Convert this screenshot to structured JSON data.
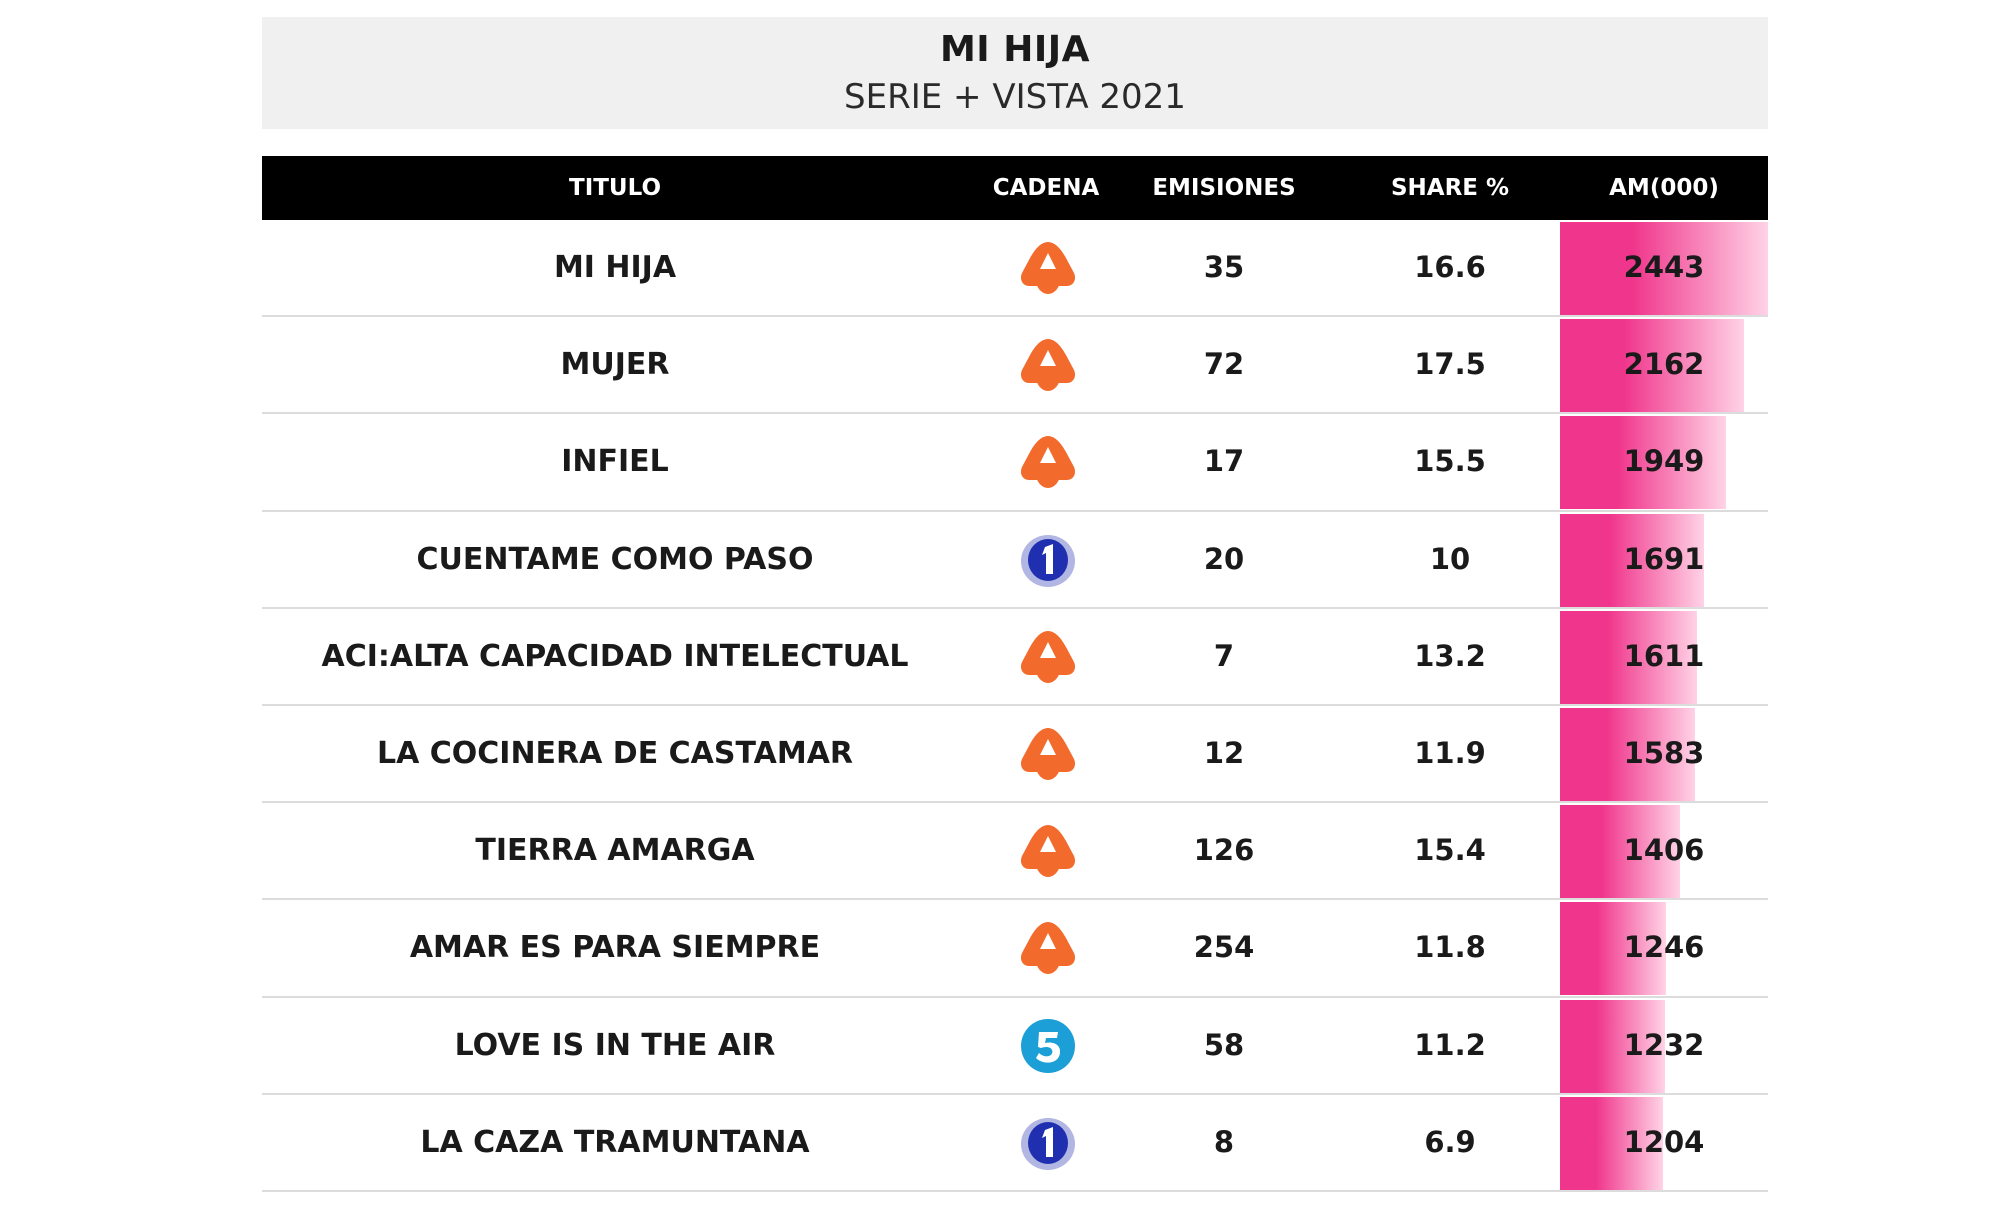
{
  "header": {
    "title": "MI HIJA",
    "subtitle": "SERIE + VISTA 2021"
  },
  "colors": {
    "header_bg": "#f0f0f0",
    "table_header_bg": "#000000",
    "bar_gradient_start": "#f0368c",
    "bar_gradient_end": "#ffd3e6",
    "antena3_orange": "#f26b2c",
    "la1_blue": "#1f2fb0",
    "telecinco_cyan": "#1c9fd6"
  },
  "chart_data": {
    "type": "table",
    "columns": [
      "TITULO",
      "CADENA",
      "EMISIONES",
      "SHARE %",
      "AM(000)"
    ],
    "bar_column": "AM(000)",
    "bar_max": 2443,
    "rows": [
      {
        "titulo": "MI HIJA",
        "cadena_icon": "antena3-logo-icon",
        "emisiones": "35",
        "share": "16.6",
        "am": "2443",
        "am_value": 2443
      },
      {
        "titulo": "MUJER",
        "cadena_icon": "antena3-logo-icon",
        "emisiones": "72",
        "share": "17.5",
        "am": "2162",
        "am_value": 2162
      },
      {
        "titulo": "INFIEL",
        "cadena_icon": "antena3-logo-icon",
        "emisiones": "17",
        "share": "15.5",
        "am": "1949",
        "am_value": 1949
      },
      {
        "titulo": "CUENTAME COMO PASO",
        "cadena_icon": "la1-logo-icon",
        "emisiones": "20",
        "share": "10",
        "am": "1691",
        "am_value": 1691
      },
      {
        "titulo": "ACI:ALTA CAPACIDAD INTELECTUAL",
        "cadena_icon": "antena3-logo-icon",
        "emisiones": "7",
        "share": "13.2",
        "am": "1611",
        "am_value": 1611
      },
      {
        "titulo": "LA COCINERA DE CASTAMAR",
        "cadena_icon": "antena3-logo-icon",
        "emisiones": "12",
        "share": "11.9",
        "am": "1583",
        "am_value": 1583
      },
      {
        "titulo": "TIERRA AMARGA",
        "cadena_icon": "antena3-logo-icon",
        "emisiones": "126",
        "share": "15.4",
        "am": "1406",
        "am_value": 1406
      },
      {
        "titulo": "AMAR ES PARA SIEMPRE",
        "cadena_icon": "antena3-logo-icon",
        "emisiones": "254",
        "share": "11.8",
        "am": "1246",
        "am_value": 1246
      },
      {
        "titulo": "LOVE IS IN THE AIR",
        "cadena_icon": "telecinco-logo-icon",
        "emisiones": "58",
        "share": "11.2",
        "am": "1232",
        "am_value": 1232
      },
      {
        "titulo": "LA CAZA TRAMUNTANA",
        "cadena_icon": "la1-logo-icon",
        "emisiones": "8",
        "share": "6.9",
        "am": "1204",
        "am_value": 1204
      }
    ]
  }
}
